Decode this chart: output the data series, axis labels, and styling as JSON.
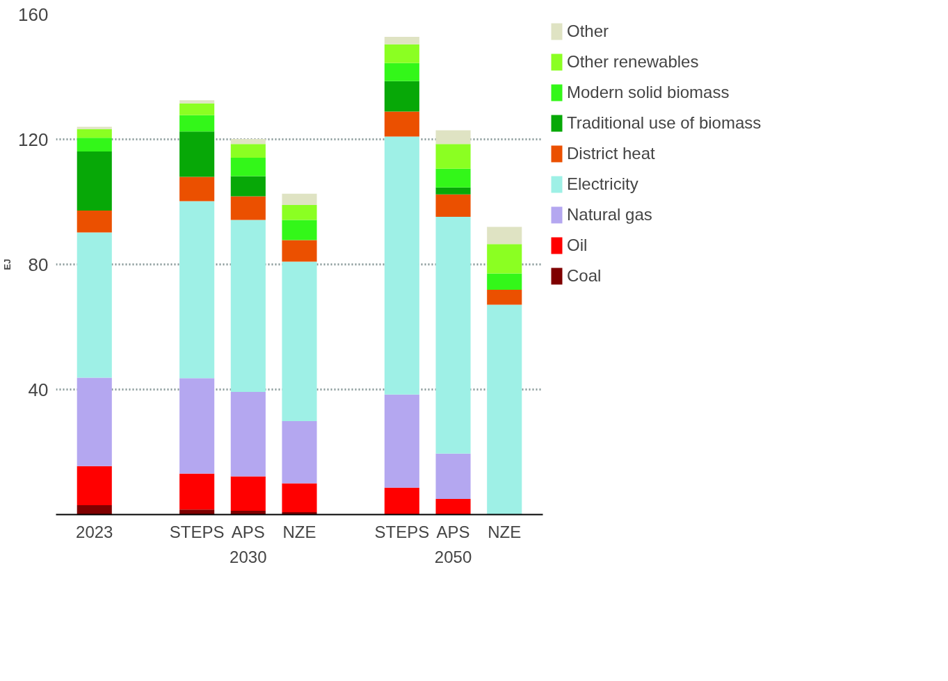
{
  "chart_data": {
    "type": "bar",
    "stacked": true,
    "ylabel": "EJ",
    "categories": [
      "2023",
      "STEPS",
      "APS",
      "NZE",
      "STEPS",
      "APS",
      "NZE"
    ],
    "annotations": [
      "2030",
      "2050"
    ],
    "series": [
      {
        "name": "Coal",
        "color": "#7f0000",
        "values": [
          3,
          1.6,
          1.2,
          0.8,
          0,
          0,
          0
        ]
      },
      {
        "name": "Oil",
        "color": "#ff0000",
        "values": [
          12.5,
          11.5,
          11,
          9.2,
          8.6,
          5,
          0
        ]
      },
      {
        "name": "Natural gas",
        "color": "#b4a7f0",
        "values": [
          28.3,
          30.5,
          27,
          19.9,
          29.8,
          14.5,
          0
        ]
      },
      {
        "name": "Electricity",
        "color": "#9ef0e6",
        "values": [
          46.4,
          56.6,
          55,
          51,
          82.5,
          75.7,
          67.1
        ]
      },
      {
        "name": "District heat",
        "color": "#eb5000",
        "values": [
          7,
          7.8,
          7.6,
          6.9,
          8,
          7.2,
          4.8
        ]
      },
      {
        "name": "Traditional use of biomass",
        "color": "#07a807",
        "values": [
          18.9,
          14.5,
          6.4,
          0,
          9.7,
          2.2,
          0
        ]
      },
      {
        "name": "Modern solid biomass",
        "color": "#33f719",
        "values": [
          4.4,
          5.2,
          5.9,
          6.4,
          5.8,
          6,
          5.2
        ]
      },
      {
        "name": "Other renewables",
        "color": "#8bff22",
        "values": [
          2.8,
          3.8,
          4.4,
          4.8,
          6,
          7.9,
          9.4
        ]
      },
      {
        "name": "Other",
        "color": "#dfe3c3",
        "values": [
          0.7,
          1,
          1.6,
          3.6,
          2.4,
          4.4,
          5.5
        ]
      }
    ],
    "ylim": [
      0,
      160
    ],
    "yticks": [
      40,
      80,
      120,
      160
    ],
    "grid": "y",
    "legend": "right"
  }
}
